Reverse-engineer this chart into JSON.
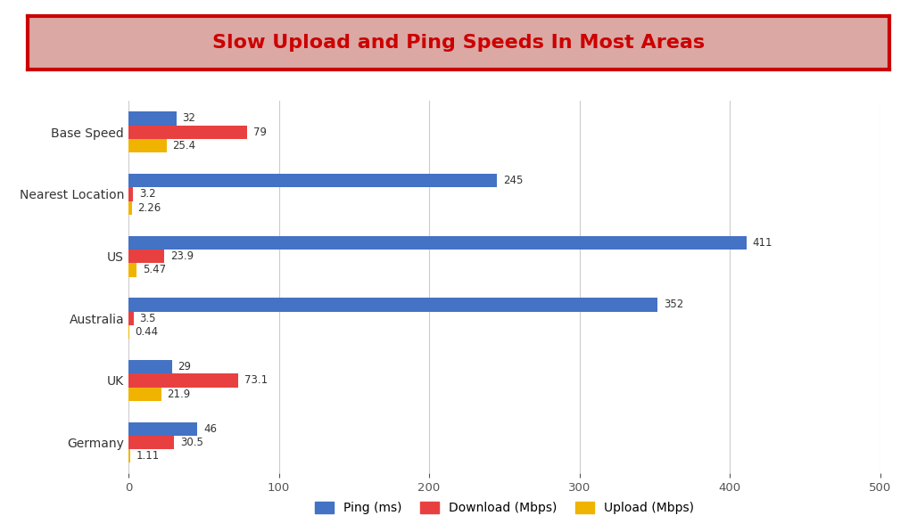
{
  "title": "Slow Upload and Ping Speeds In Most Areas",
  "title_color": "#cc0000",
  "title_bg_color": "#dba8a4",
  "title_border_color": "#cc0000",
  "categories": [
    "Germany",
    "UK",
    "Australia",
    "US",
    "Nearest Location",
    "Base Speed"
  ],
  "ping": [
    46,
    29,
    352,
    411,
    245,
    32
  ],
  "download": [
    30.5,
    73.1,
    3.5,
    23.9,
    3.2,
    79
  ],
  "upload": [
    1.11,
    21.9,
    0.44,
    5.47,
    2.26,
    25.4
  ],
  "ping_labels": [
    "46",
    "29",
    "352",
    "411",
    "245",
    "32"
  ],
  "download_labels": [
    "30.5",
    "73.1",
    "3.5",
    "23.9",
    "3.2",
    "79"
  ],
  "upload_labels": [
    "1.11",
    "21.9",
    "0.44",
    "5.47",
    "2.26",
    "25.4"
  ],
  "ping_color": "#4472c4",
  "download_color": "#e84040",
  "upload_color": "#f0b400",
  "xlim": [
    0,
    500
  ],
  "xticks": [
    0,
    100,
    200,
    300,
    400,
    500
  ],
  "legend_labels": [
    "Ping (ms)",
    "Download (Mbps)",
    "Upload (Mbps)"
  ],
  "bar_height": 0.22,
  "figsize": [
    10.28,
    5.97
  ],
  "dpi": 100,
  "bg_color": "#ffffff",
  "grid_color": "#cccccc"
}
